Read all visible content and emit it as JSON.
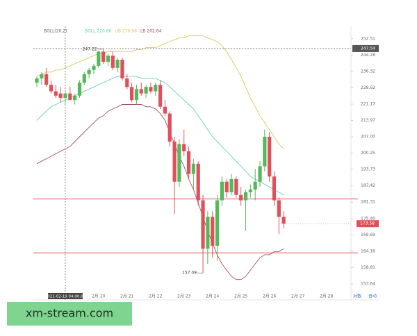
{
  "chart_data": {
    "type": "candlestick",
    "log_scale": true,
    "indicator": "BOLL(20,2)",
    "categories": [
      null,
      null,
      null,
      null,
      null,
      null,
      "2021-02-19 04:00:00",
      null,
      null,
      null,
      null,
      null,
      null,
      "2月 20",
      null,
      null,
      null,
      null,
      null,
      "2月 21",
      null,
      null,
      null,
      null,
      null,
      "2月 22",
      null,
      null,
      null,
      null,
      null,
      "2月 23",
      null,
      null,
      null,
      null,
      null,
      "2月 24",
      null,
      null,
      null,
      null,
      null,
      "2月 25",
      null,
      null,
      null,
      null,
      null,
      "2月 26",
      null,
      null,
      null,
      null,
      null,
      "2月 27",
      null,
      null,
      null,
      null,
      null,
      "2月 28",
      null
    ],
    "open": [
      231,
      233,
      235,
      230,
      227,
      226,
      224,
      226,
      223,
      225,
      231,
      235,
      237,
      239,
      246,
      241,
      244,
      238,
      242,
      233,
      229,
      223,
      228,
      226,
      229,
      227,
      230,
      220,
      217,
      205,
      189,
      204,
      201,
      192,
      196,
      182,
      165,
      176,
      166,
      182,
      189,
      185,
      190,
      184,
      182,
      185,
      186,
      189,
      195,
      207,
      191,
      182,
      176,
      null,
      null,
      null,
      null,
      null,
      null,
      null,
      null,
      null,
      null
    ],
    "high": [
      234,
      236,
      238,
      232,
      230,
      229,
      227,
      229,
      226,
      232,
      236,
      238,
      240,
      246.5,
      247.22,
      245,
      246,
      243,
      243,
      235,
      231,
      230,
      231,
      230,
      231,
      231,
      232,
      223,
      218,
      207,
      206,
      210,
      203,
      198,
      197,
      184,
      178,
      178,
      184,
      191,
      190,
      192,
      191,
      187,
      186,
      188,
      194,
      197,
      210,
      209,
      193,
      183,
      178,
      null,
      null,
      null,
      null,
      null,
      null,
      null,
      null,
      null,
      null
    ],
    "low": [
      229,
      230,
      229,
      226,
      224,
      222,
      221,
      223,
      221,
      224,
      230,
      233,
      235,
      238,
      240,
      239,
      237,
      236,
      232,
      228,
      222,
      221,
      225,
      224,
      226,
      225,
      219,
      216,
      203,
      177,
      187,
      199,
      190,
      186,
      180,
      157.09,
      160,
      162,
      161,
      180,
      183,
      184,
      183,
      180,
      171,
      183,
      182,
      187,
      193,
      189,
      180,
      170,
      172,
      null,
      null,
      null,
      null,
      null,
      null,
      null,
      null,
      null,
      null
    ],
    "close": [
      233,
      235,
      230,
      227,
      225,
      224,
      226,
      223,
      225,
      231,
      235,
      237,
      239,
      246,
      241,
      244,
      238,
      242,
      233,
      229,
      223,
      228,
      226,
      229,
      227,
      230,
      220,
      217,
      205,
      189,
      204,
      201,
      192,
      196,
      182,
      165,
      176,
      166,
      182,
      189,
      185,
      190,
      184,
      182,
      185,
      186,
      189,
      195,
      207,
      191,
      182,
      176,
      173.58,
      null,
      null,
      null,
      null,
      null,
      null,
      null,
      null,
      null,
      null
    ],
    "up_color": "#55b85a",
    "down_color": "#e0505a",
    "series": [
      {
        "name": "BOLL",
        "color": "#63cfae",
        "reading": {
          "value": 220.6,
          "label": "220.60"
        },
        "values": [
          214,
          216,
          218,
          220,
          221,
          222,
          223,
          224,
          225,
          226,
          227,
          228,
          229,
          230,
          231,
          232,
          233,
          234,
          234,
          234,
          234,
          234,
          233,
          233,
          233,
          233,
          232,
          231,
          229,
          227,
          225,
          223,
          221,
          219,
          216,
          213,
          210,
          207,
          205,
          203,
          201,
          199,
          197,
          195,
          193,
          191,
          190,
          189,
          188,
          187,
          186,
          185,
          184,
          null,
          null,
          null,
          null,
          null,
          null,
          null,
          null,
          null,
          null
        ]
      },
      {
        "name": "UB",
        "color": "#d9c65c",
        "reading": {
          "value": 230.96,
          "label": "230.96"
        },
        "values": [
          234,
          235,
          236,
          236,
          237,
          237,
          238,
          239,
          240,
          241,
          242,
          243,
          244,
          245,
          245,
          246,
          246,
          246,
          246,
          246,
          246,
          247,
          247,
          248,
          248,
          248,
          249,
          250,
          251,
          252,
          253,
          253,
          254,
          254,
          254,
          254,
          253,
          252,
          251,
          249,
          246,
          242,
          238,
          234,
          229,
          224,
          220,
          216,
          213,
          210,
          207,
          204,
          202,
          null,
          null,
          null,
          null,
          null,
          null,
          null,
          null,
          null,
          null
        ]
      },
      {
        "name": "LB",
        "color": "#a84b62",
        "reading": {
          "value": 202.64,
          "label": "202.64"
        },
        "values": [
          196,
          197,
          198,
          199,
          200,
          201,
          202,
          203,
          205,
          207,
          209,
          211,
          213,
          215,
          216,
          218,
          219,
          220,
          221,
          221,
          221,
          221,
          221,
          220,
          220,
          219,
          217,
          214,
          209,
          204,
          199,
          195,
          190,
          186,
          181,
          176,
          171,
          167,
          163,
          160,
          158,
          156,
          155,
          155,
          156,
          158,
          160,
          162,
          163,
          163,
          164,
          164,
          165,
          null,
          null,
          null,
          null,
          null,
          null,
          null,
          null,
          null,
          null
        ]
      }
    ],
    "levels": [
      182.5,
      163.6
    ],
    "level_color": "#e05050",
    "crosshair_y": 247.54,
    "ylim": [
      150,
      260
    ],
    "yticks": [
      252.51,
      244.28,
      236.32,
      228.62,
      221.17,
      213.97,
      {
        "value": 207,
        "label": "207.00"
      },
      200.25,
      193.73,
      187.42,
      181.31,
      {
        "value": 175.4,
        "label": "175.40"
      },
      169.69,
      164.16,
      158.81,
      153.64
    ],
    "controls": [
      "对数",
      "自动"
    ]
  },
  "watermark": "xm-stream.com"
}
